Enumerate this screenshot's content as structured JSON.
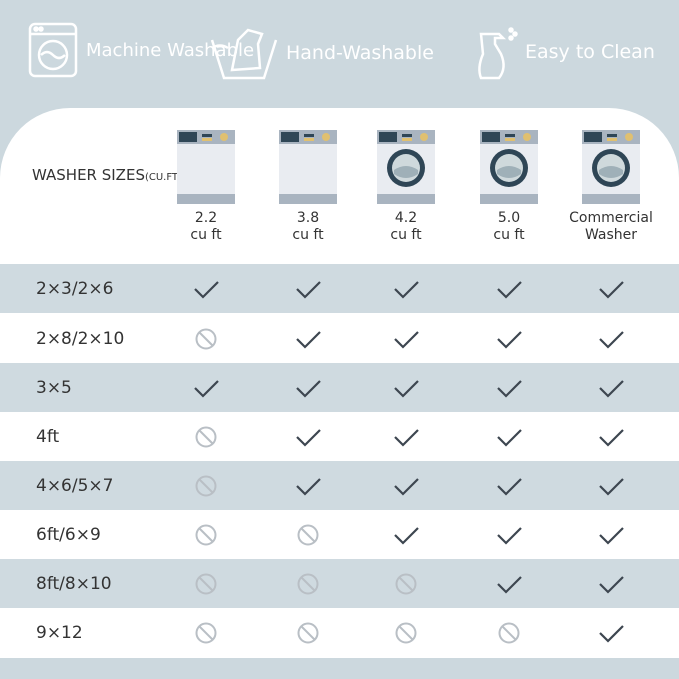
{
  "features": [
    {
      "label": "Machine Washable",
      "icon": "washing-machine-icon"
    },
    {
      "label": "Hand-Washable",
      "icon": "hand-wash-icon"
    },
    {
      "label": "Easy to Clean",
      "icon": "spray-bottle-icon"
    }
  ],
  "table": {
    "header_label": "WASHER SIZES",
    "header_unit": "(CU.FT.)",
    "columns": [
      {
        "line1": "2.2",
        "line2": "cu ft",
        "icon": "top-panel-washer-icon"
      },
      {
        "line1": "3.8",
        "line2": "cu ft",
        "icon": "top-panel-washer-icon"
      },
      {
        "line1": "4.2",
        "line2": "cu ft",
        "icon": "front-load-washer-icon"
      },
      {
        "line1": "5.0",
        "line2": "cu ft",
        "icon": "front-load-washer-icon"
      },
      {
        "line1": "Commercial",
        "line2": "Washer",
        "icon": "front-load-washer-icon"
      }
    ],
    "rows": [
      {
        "label": "2×3/2×6",
        "values": [
          true,
          true,
          true,
          true,
          true
        ]
      },
      {
        "label": "2×8/2×10",
        "values": [
          false,
          true,
          true,
          true,
          true
        ]
      },
      {
        "label": "3×5",
        "values": [
          true,
          true,
          true,
          true,
          true
        ]
      },
      {
        "label": "4ft",
        "values": [
          false,
          true,
          true,
          true,
          true
        ]
      },
      {
        "label": "4×6/5×7",
        "values": [
          false,
          true,
          true,
          true,
          true
        ]
      },
      {
        "label": "6ft/6×9",
        "values": [
          false,
          false,
          true,
          true,
          true
        ]
      },
      {
        "label": "8ft/8×10",
        "values": [
          false,
          false,
          false,
          true,
          true
        ]
      },
      {
        "label": "9×12",
        "values": [
          false,
          false,
          false,
          false,
          true
        ]
      }
    ]
  },
  "colors": {
    "background": "#ccd8de",
    "stripe": "#cfdae0",
    "check": "#3d4650",
    "prohibited": "#b9bfc5"
  }
}
